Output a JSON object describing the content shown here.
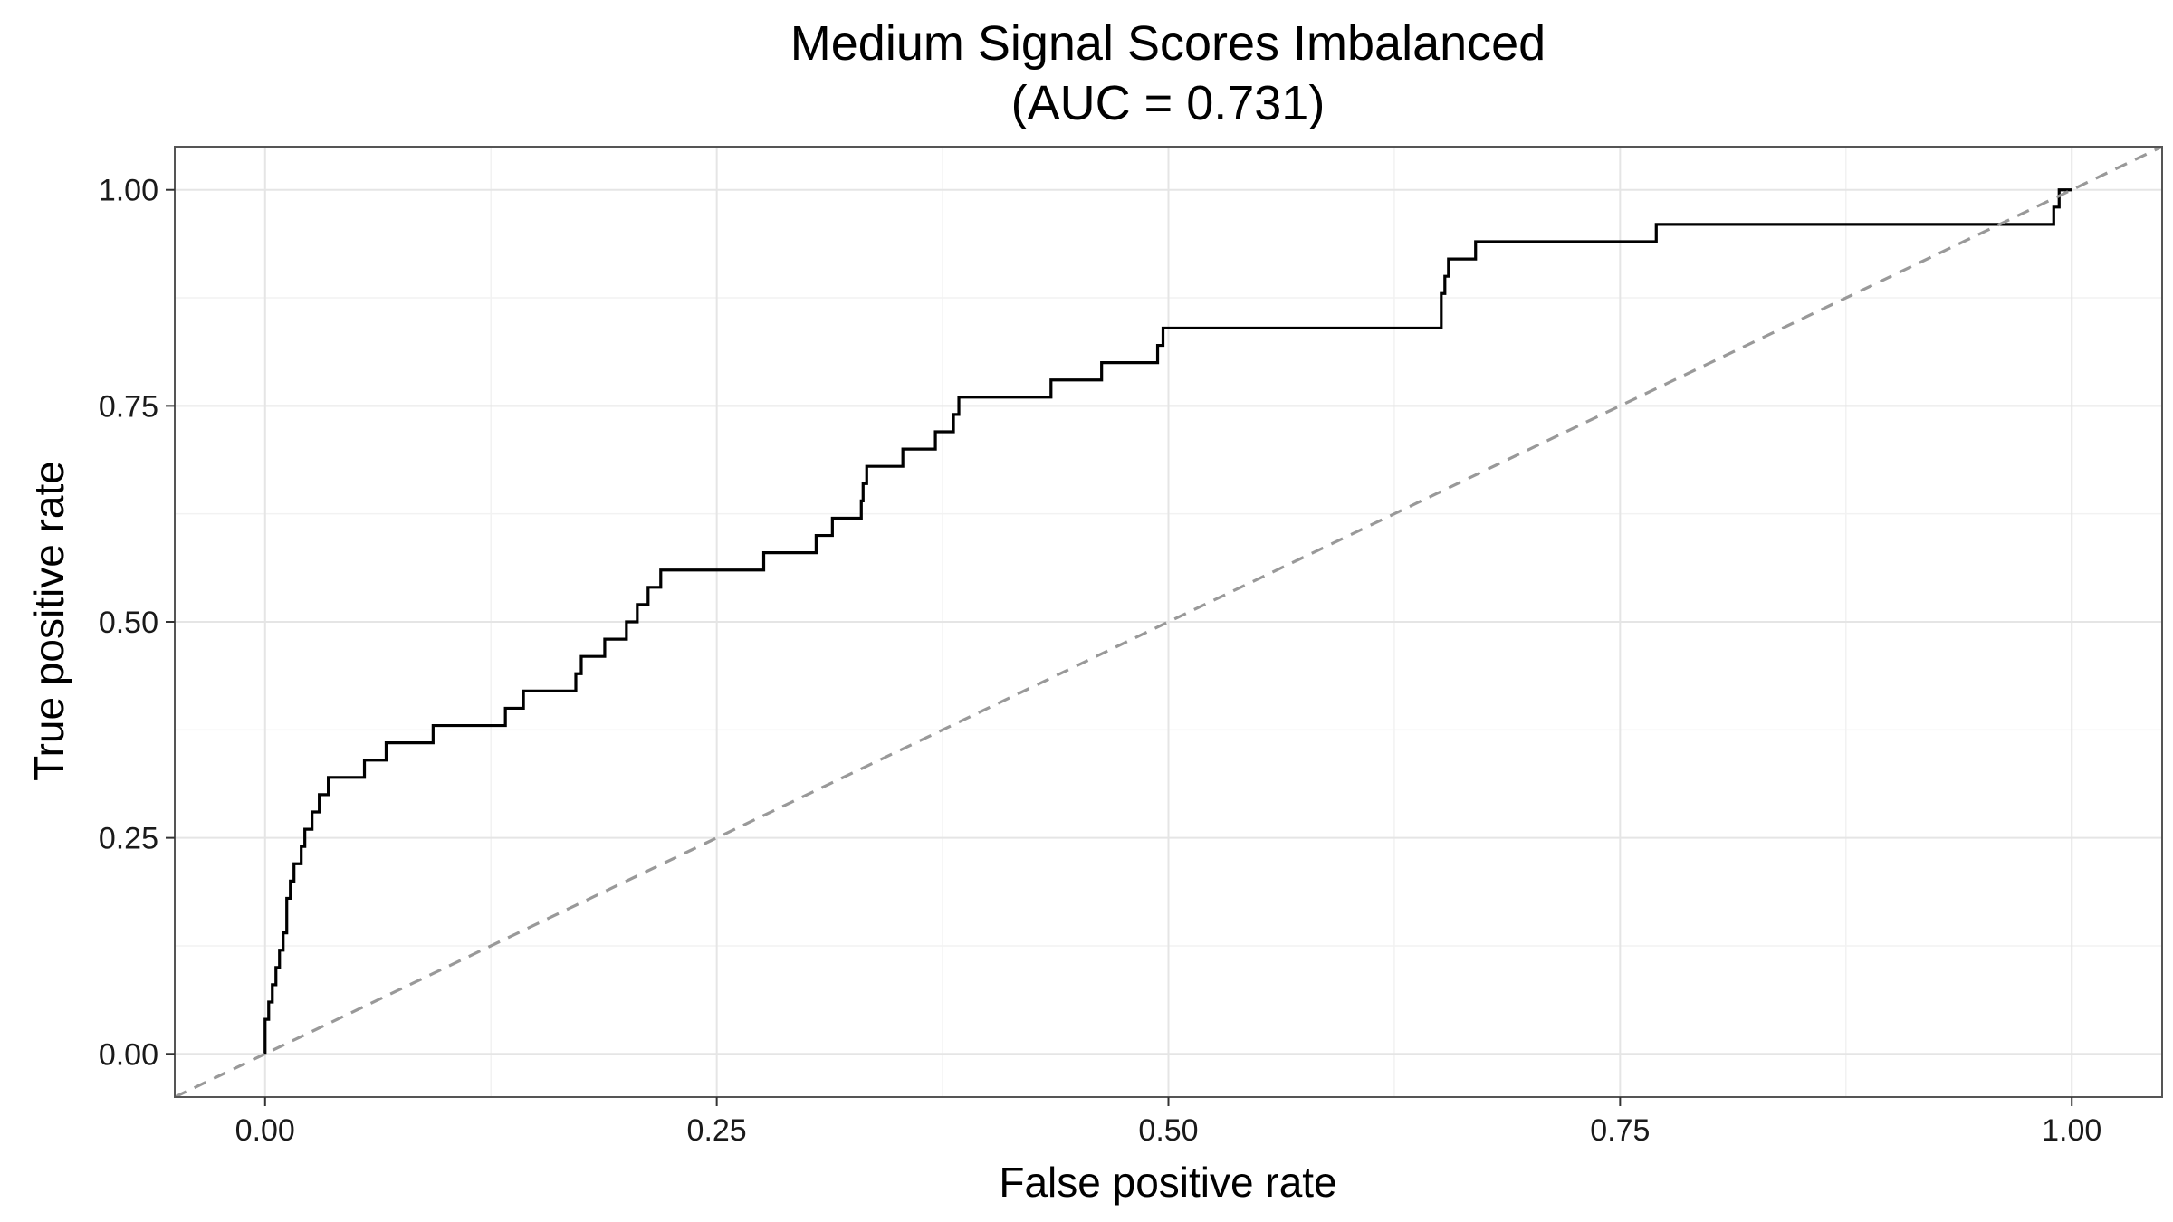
{
  "chart_data": {
    "type": "line",
    "title": "Medium Signal Scores Imbalanced",
    "subtitle": "(AUC = 0.731)",
    "xlabel": "False positive rate",
    "ylabel": "True positive rate",
    "xlim": [
      -0.05,
      1.05
    ],
    "ylim": [
      -0.05,
      1.05
    ],
    "x_ticks": [
      0,
      0.25,
      0.5,
      0.75,
      1
    ],
    "x_tick_labels": [
      "0.00",
      "0.25",
      "0.50",
      "0.75",
      "1.00"
    ],
    "y_ticks": [
      0,
      0.25,
      0.5,
      0.75,
      1
    ],
    "y_tick_labels": [
      "0.00",
      "0.25",
      "0.50",
      "0.75",
      "1.00"
    ],
    "grid": true,
    "series": [
      {
        "style": "step",
        "color": "#000000",
        "x": [
          0,
          0,
          0.002,
          0.004,
          0.006,
          0.008,
          0.01,
          0.012,
          0.014,
          0.016,
          0.018,
          0.02,
          0.022,
          0.026,
          0.028,
          0.03,
          0.032,
          0.035,
          0.038,
          0.04,
          0.055,
          0.057,
          0.067,
          0.07,
          0.093,
          0.095,
          0.133,
          0.135,
          0.143,
          0.145,
          0.172,
          0.175,
          0.178,
          0.188,
          0.19,
          0.2,
          0.202,
          0.206,
          0.208,
          0.212,
          0.214,
          0.219,
          0.221,
          0.276,
          0.278,
          0.305,
          0.307,
          0.314,
          0.316,
          0.33,
          0.331,
          0.333,
          0.335,
          0.353,
          0.355,
          0.371,
          0.373,
          0.381,
          0.383,
          0.384,
          0.386,
          0.435,
          0.437,
          0.463,
          0.465,
          0.494,
          0.495,
          0.497,
          0.499,
          0.651,
          0.653,
          0.655,
          0.657,
          0.67,
          0.672,
          0.77,
          0.772,
          0.99,
          0.991,
          0.993,
          0.995,
          1.0
        ],
        "y": [
          0,
          0.04,
          0.06,
          0.08,
          0.1,
          0.12,
          0.14,
          0.18,
          0.2,
          0.22,
          0.22,
          0.24,
          0.26,
          0.28,
          0.28,
          0.3,
          0.3,
          0.32,
          0.32,
          0.32,
          0.34,
          0.34,
          0.36,
          0.36,
          0.38,
          0.38,
          0.4,
          0.4,
          0.42,
          0.42,
          0.44,
          0.46,
          0.46,
          0.48,
          0.48,
          0.5,
          0.5,
          0.52,
          0.52,
          0.54,
          0.54,
          0.56,
          0.56,
          0.58,
          0.58,
          0.6,
          0.6,
          0.62,
          0.62,
          0.64,
          0.66,
          0.68,
          0.68,
          0.7,
          0.7,
          0.72,
          0.72,
          0.74,
          0.74,
          0.76,
          0.76,
          0.78,
          0.78,
          0.8,
          0.8,
          0.82,
          0.82,
          0.84,
          0.84,
          0.88,
          0.9,
          0.92,
          0.92,
          0.94,
          0.94,
          0.96,
          0.96,
          0.98,
          0.98,
          1.0,
          1.0,
          1.0
        ]
      },
      {
        "style": "dashed",
        "color": "#999999",
        "x": [
          -0.05,
          1.05
        ],
        "y": [
          -0.05,
          1.05
        ]
      }
    ]
  },
  "colors": {
    "background": "#ffffff",
    "grid_major": "#e5e5e5",
    "grid_minor": "#f2f2f2",
    "panel_border": "#555555",
    "roc_line": "#000000",
    "diagonal": "#999999"
  }
}
